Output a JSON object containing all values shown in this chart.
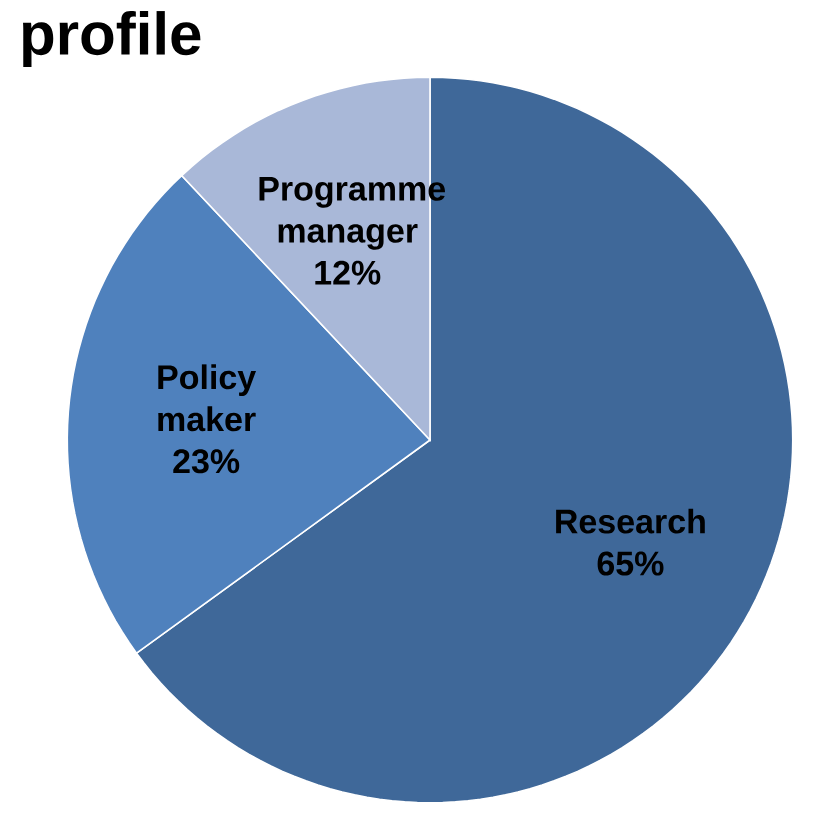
{
  "chart_data": {
    "type": "pie",
    "title": "profile",
    "categories": [
      "Research",
      "Policy maker",
      "Programme manager"
    ],
    "values": [
      65,
      23,
      12
    ],
    "value_labels": [
      "65%",
      "23%",
      "12%"
    ],
    "colors": [
      "#3f6899",
      "#4f81bd",
      "#a9b8d8"
    ]
  }
}
